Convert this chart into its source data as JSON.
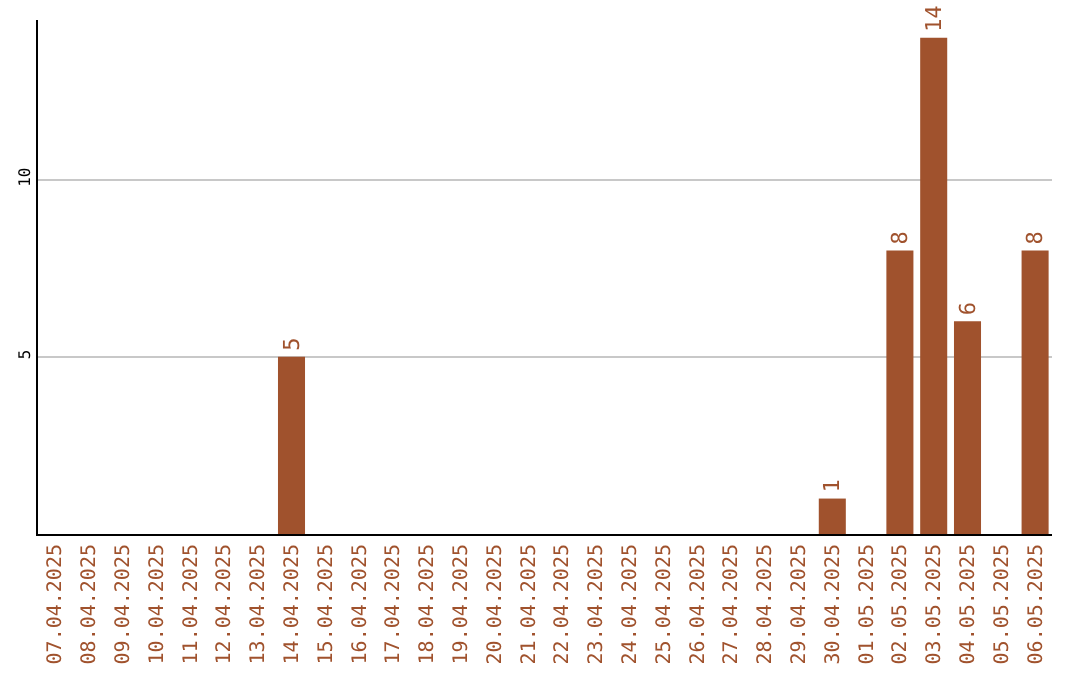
{
  "chart_data": {
    "type": "bar",
    "categories": [
      "07.04.2025",
      "08.04.2025",
      "09.04.2025",
      "10.04.2025",
      "11.04.2025",
      "12.04.2025",
      "13.04.2025",
      "14.04.2025",
      "15.04.2025",
      "16.04.2025",
      "17.04.2025",
      "18.04.2025",
      "19.04.2025",
      "20.04.2025",
      "21.04.2025",
      "22.04.2025",
      "23.04.2025",
      "24.04.2025",
      "25.04.2025",
      "26.04.2025",
      "27.04.2025",
      "28.04.2025",
      "29.04.2025",
      "30.04.2025",
      "01.05.2025",
      "02.05.2025",
      "03.05.2025",
      "04.05.2025",
      "05.05.2025",
      "06.05.2025"
    ],
    "values": [
      0,
      0,
      0,
      0,
      0,
      0,
      0,
      5,
      0,
      0,
      0,
      0,
      0,
      0,
      0,
      0,
      0,
      0,
      0,
      0,
      0,
      0,
      0,
      1,
      0,
      8,
      14,
      6,
      0,
      8
    ],
    "value_labels": [
      null,
      null,
      null,
      null,
      null,
      null,
      null,
      "5",
      null,
      null,
      null,
      null,
      null,
      null,
      null,
      null,
      null,
      null,
      null,
      null,
      null,
      null,
      null,
      "1",
      null,
      "8",
      "14",
      "6",
      null,
      "8"
    ],
    "color": "#a0522d",
    "ylim": [
      0,
      14.5
    ],
    "yticks": [
      5,
      10
    ],
    "grid": "y"
  }
}
